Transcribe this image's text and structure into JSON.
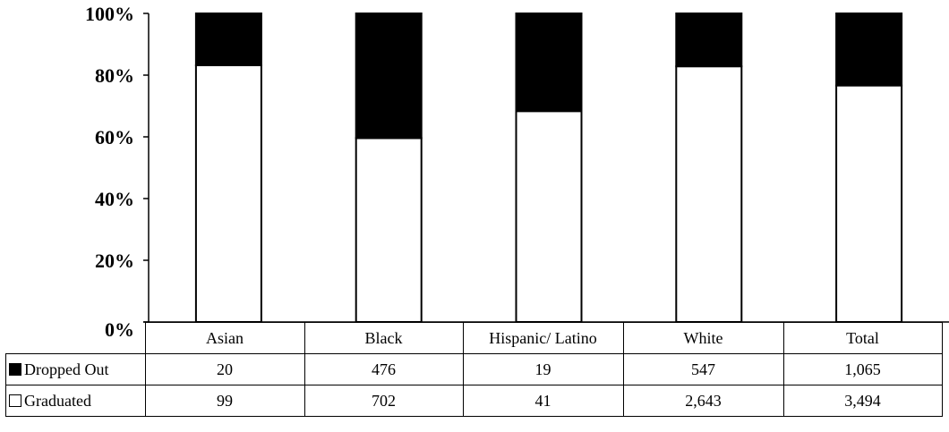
{
  "chart_data": {
    "type": "bar",
    "stacked": true,
    "normalized": true,
    "categories": [
      "Asian",
      "Black",
      "Hispanic/ Latino",
      "White",
      "Total"
    ],
    "series": [
      {
        "name": "Dropped Out",
        "color": "#000000",
        "values": [
          20,
          476,
          19,
          547,
          1065
        ],
        "display_values": [
          "20",
          "476",
          "19",
          "547",
          "1,065"
        ]
      },
      {
        "name": "Graduated",
        "color": "#ffffff",
        "values": [
          99,
          702,
          41,
          2643,
          3494
        ],
        "display_values": [
          "99",
          "702",
          "41",
          "2,643",
          "3,494"
        ]
      }
    ],
    "yticks": [
      "0%",
      "20%",
      "40%",
      "60%",
      "80%",
      "100%"
    ],
    "ylim": [
      0,
      100
    ],
    "grid": false,
    "legend": "data table below chart"
  }
}
